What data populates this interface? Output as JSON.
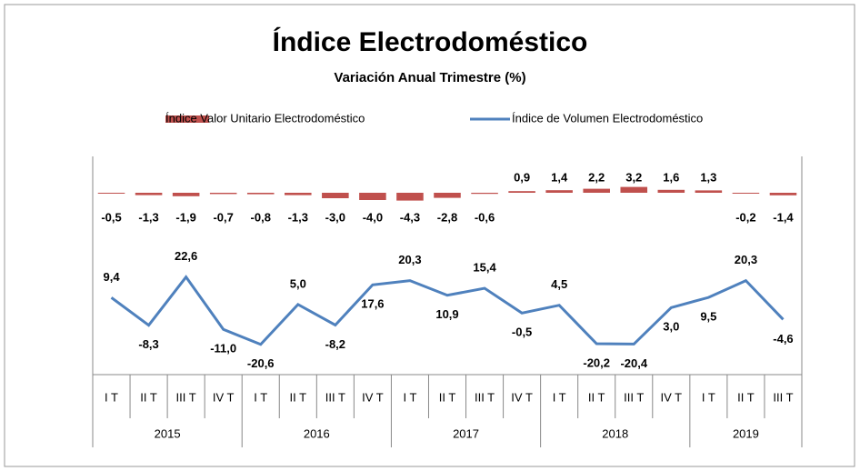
{
  "chart_data": {
    "type": "bar+line",
    "title": "Índice Electrodoméstico",
    "subtitle": "Variación Anual Trimestre  (%)",
    "categories": [
      "I T",
      "II T",
      "III T",
      "IV T",
      "I T",
      "II T",
      "III T",
      "IV T",
      "I T",
      "II T",
      "III T",
      "IV T",
      "I T",
      "II T",
      "III T",
      "IV T",
      "I T",
      "II T",
      "III T"
    ],
    "groups": [
      "2015",
      "2016",
      "2017",
      "2018",
      "2019"
    ],
    "ylim": [
      -40,
      100
    ],
    "y2lim": [
      -100,
      20
    ],
    "legend": "top",
    "series": [
      {
        "name": "Índice Valor Unitario Electrodoméstico",
        "type": "bar",
        "axis": "y2",
        "color": "#c0504d",
        "values": [
          -0.5,
          -1.3,
          -1.9,
          -0.7,
          -0.8,
          -1.3,
          -3.0,
          -4.0,
          -4.3,
          -2.8,
          -0.6,
          0.9,
          1.4,
          2.2,
          3.2,
          1.6,
          1.3,
          -0.2,
          -1.4
        ],
        "value_labels": [
          "-0,5",
          "-1,3",
          "-1,9",
          "-0,7",
          "-0,8",
          "-1,3",
          "-3,0",
          "-4,0",
          "-4,3",
          "-2,8",
          "-0,6",
          "0,9",
          "1,4",
          "2,2",
          "3,2",
          "1,6",
          "1,3",
          "-0,2",
          "-1,4"
        ]
      },
      {
        "name": "Índice de Volumen Electrodoméstico",
        "type": "line",
        "color": "#4f81bd",
        "values": [
          9.4,
          -8.3,
          22.6,
          -11.0,
          -20.6,
          5.0,
          -8.2,
          17.6,
          20.3,
          10.9,
          15.4,
          -0.5,
          4.5,
          -20.2,
          -20.4,
          3.0,
          9.5,
          20.3,
          -4.6
        ],
        "value_labels": [
          "9,4",
          "-8,3",
          "22,6",
          "-11,0",
          "-20,6",
          "5,0",
          "-8,2",
          "17,6",
          "20,3",
          "10,9",
          "15,4",
          "-0,5",
          "4,5",
          "-20,2",
          "-20,4",
          "3,0",
          "9,5",
          "20,3",
          "-4,6"
        ]
      }
    ]
  }
}
